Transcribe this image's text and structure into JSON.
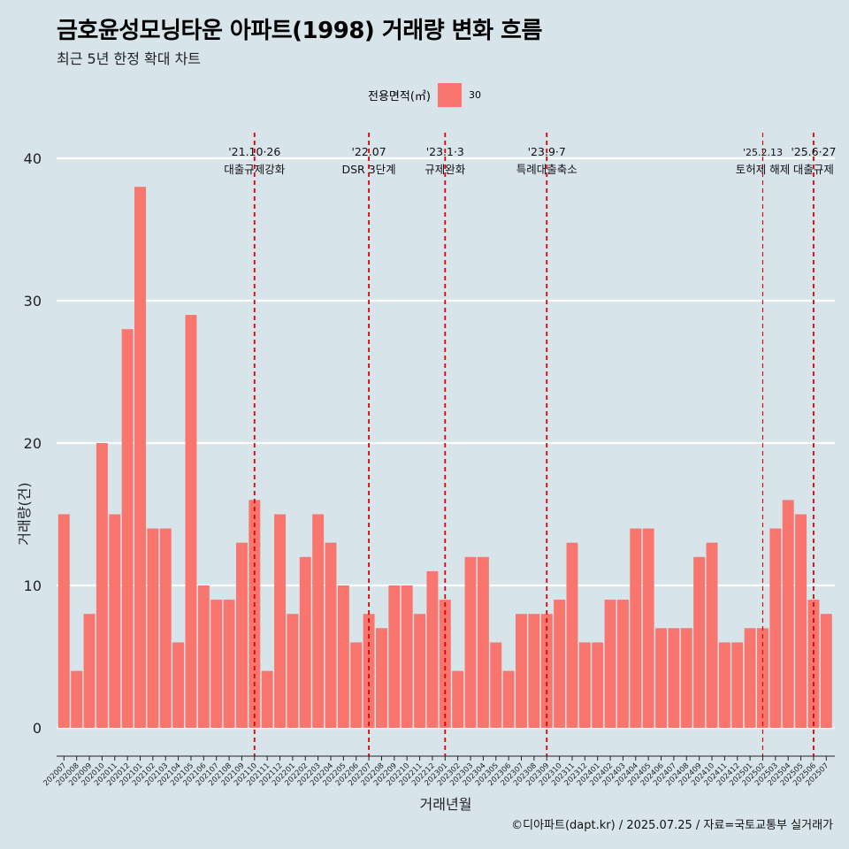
{
  "title": "금호윤성모닝타운 아파트(1998) 거래량 변화 흐름",
  "subtitle": "최근 5년 한정 확대 차트",
  "legend": {
    "title": "전용면적(㎡)",
    "label": "30",
    "color": "#f8766d"
  },
  "caption": "©디아파트(dapt.kr) / 2025.07.25 / 자료=국토교통부 실거래가",
  "chart_data": {
    "type": "bar",
    "xlabel": "거래년월",
    "ylabel": "거래량(건)",
    "ylim": [
      0,
      40
    ],
    "yticks": [
      0,
      10,
      20,
      30,
      40
    ],
    "grid": true,
    "bar_color": "#f8766d",
    "categories": [
      "202007",
      "202008",
      "202009",
      "202010",
      "202011",
      "202012",
      "202101",
      "202102",
      "202103",
      "202104",
      "202105",
      "202106",
      "202107",
      "202108",
      "202109",
      "202110",
      "202111",
      "202112",
      "202201",
      "202202",
      "202203",
      "202204",
      "202205",
      "202206",
      "202207",
      "202208",
      "202209",
      "202210",
      "202211",
      "202212",
      "202301",
      "202302",
      "202303",
      "202304",
      "202305",
      "202306",
      "202307",
      "202308",
      "202309",
      "202310",
      "202311",
      "202312",
      "202401",
      "202402",
      "202403",
      "202404",
      "202405",
      "202406",
      "202407",
      "202408",
      "202409",
      "202410",
      "202411",
      "202412",
      "202501",
      "202502",
      "202503",
      "202504",
      "202505",
      "202506",
      "202507"
    ],
    "series": [
      {
        "values": [
          15,
          4,
          8,
          20,
          15,
          28,
          38,
          14,
          14,
          6,
          29,
          10,
          9,
          9,
          13,
          16,
          4,
          15,
          8,
          12,
          15,
          13,
          10,
          6,
          8,
          7,
          10,
          10,
          8,
          11,
          9,
          4,
          12,
          12,
          6,
          4,
          8,
          8,
          8,
          9,
          13,
          6,
          6,
          9,
          9,
          14,
          14,
          7,
          7,
          7,
          12,
          13,
          6,
          6,
          7,
          7,
          14,
          16,
          15,
          9,
          8
        ]
      }
    ],
    "annotations": [
      {
        "at": "202110",
        "date": "'21.10·26",
        "label": "대출규제강화",
        "color": "#e00000",
        "style": "dashed",
        "emphasis": "strong"
      },
      {
        "at": "202207",
        "date": "'22.07",
        "label": "DSR 3단계",
        "color": "#e00000",
        "style": "dashed",
        "emphasis": "strong"
      },
      {
        "at": "202301",
        "date": "'23.1·3",
        "label": "규제완화",
        "color": "#e00000",
        "style": "dashed",
        "emphasis": "strong"
      },
      {
        "at": "202309",
        "date": "'23.9·7",
        "label": "특례대출축소",
        "color": "#e00000",
        "style": "dashed",
        "emphasis": "strong"
      },
      {
        "at": "202502",
        "date": "'25.2.13",
        "label": "토허제 해제",
        "color": "#e00000",
        "style": "dashed",
        "emphasis": "light"
      },
      {
        "at": "202506",
        "date": "'25.6·27",
        "label": "대출규제",
        "color": "#e00000",
        "style": "dashed",
        "emphasis": "strong"
      }
    ]
  }
}
